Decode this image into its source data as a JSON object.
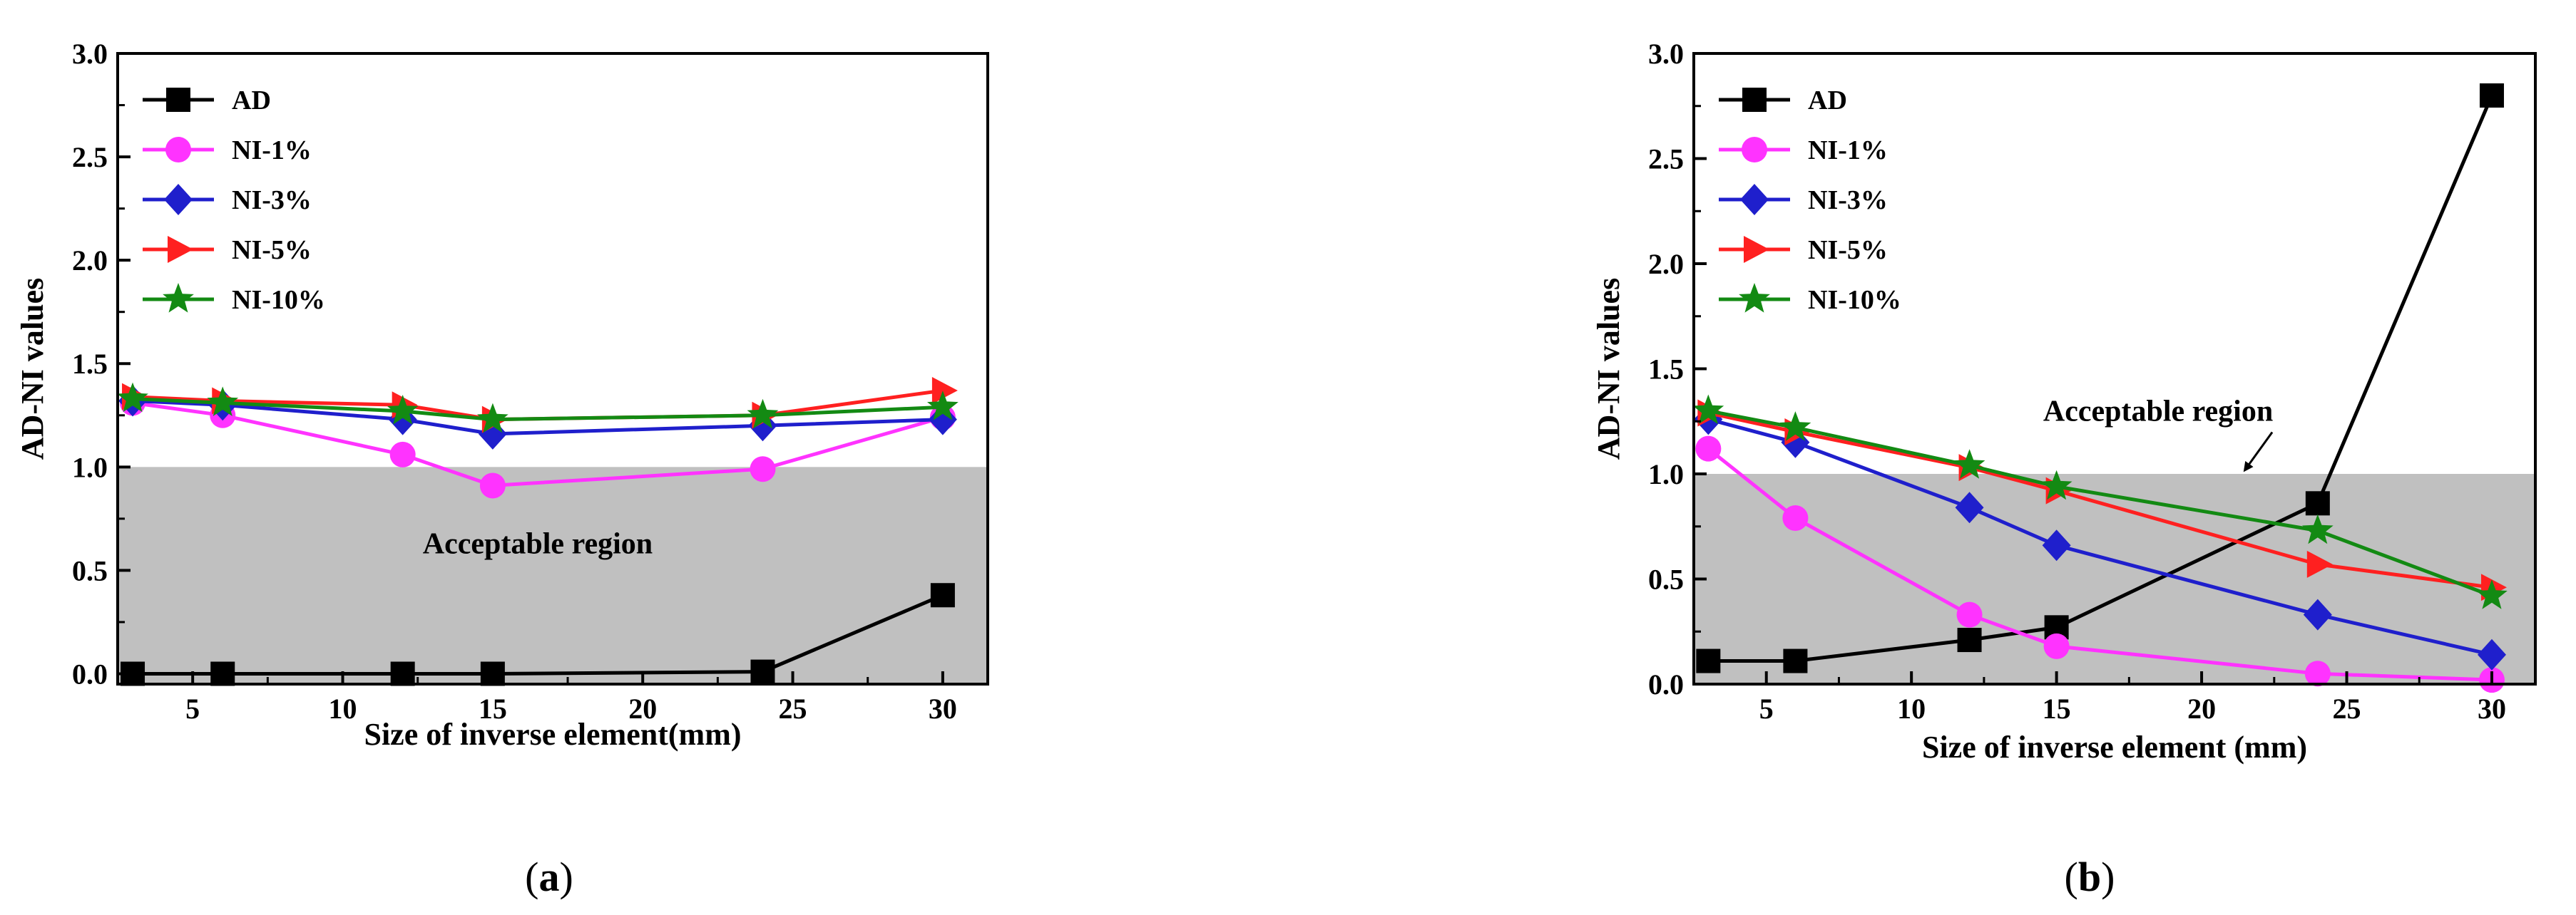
{
  "chart_data": [
    {
      "type": "line",
      "panel_label": "(a)",
      "panel_letter": "a",
      "xlabel": "Size of inverse element(mm)",
      "ylabel": "AD-NI values",
      "xlim": [
        2.5,
        31.5
      ],
      "ylim": [
        -0.05,
        3.0
      ],
      "xticks": [
        5,
        10,
        15,
        20,
        25,
        30
      ],
      "yticks": [
        0.0,
        0.5,
        1.0,
        1.5,
        2.0,
        2.5,
        3.0
      ],
      "tick_labels_y": [
        "0.0",
        "0.5",
        "1.0",
        "1.5",
        "2.0",
        "2.5",
        "3.0"
      ],
      "tick_labels_x": [
        "5",
        "10",
        "15",
        "20",
        "25",
        "30"
      ],
      "shaded_region": {
        "y_from": -0.05,
        "y_to": 1.0,
        "color": "#c0c0c0"
      },
      "annotation": {
        "text": "Acceptable region",
        "x": 16.5,
        "y": 0.63,
        "anchor": "middle",
        "arrow": false
      },
      "legend_position": "top-left",
      "x": [
        3,
        6,
        12,
        15,
        24,
        30
      ],
      "series": [
        {
          "name": "AD",
          "color": "#000000",
          "marker": "square",
          "values": [
            0.0,
            0.0,
            0.0,
            0.0,
            0.01,
            0.38
          ]
        },
        {
          "name": "NI-1%",
          "color": "#ff33ff",
          "marker": "circle",
          "values": [
            1.31,
            1.25,
            1.06,
            0.91,
            0.99,
            1.24
          ]
        },
        {
          "name": "NI-3%",
          "color": "#1f1fcc",
          "marker": "diamond",
          "values": [
            1.32,
            1.3,
            1.23,
            1.16,
            1.2,
            1.23
          ]
        },
        {
          "name": "NI-5%",
          "color": "#ff2020",
          "marker": "triangle-right",
          "values": [
            1.34,
            1.32,
            1.3,
            1.23,
            1.25,
            1.37
          ]
        },
        {
          "name": "NI-10%",
          "color": "#138a13",
          "marker": "star",
          "values": [
            1.33,
            1.31,
            1.27,
            1.23,
            1.25,
            1.29
          ]
        }
      ]
    },
    {
      "type": "line",
      "panel_label": "(b)",
      "panel_letter": "b",
      "xlabel": "Size of inverse element (mm)",
      "ylabel": "AD-NI values",
      "xlim": [
        2.5,
        31.5
      ],
      "ylim": [
        0.0,
        3.0
      ],
      "xticks": [
        5,
        10,
        15,
        20,
        25,
        30
      ],
      "yticks": [
        0.0,
        0.5,
        1.0,
        1.5,
        2.0,
        2.5,
        3.0
      ],
      "tick_labels_y": [
        "0.0",
        "0.5",
        "1.0",
        "1.5",
        "2.0",
        "2.5",
        "3.0"
      ],
      "tick_labels_x": [
        "5",
        "10",
        "15",
        "20",
        "25",
        "30"
      ],
      "shaded_region": {
        "y_from": 0.0,
        "y_to": 1.0,
        "color": "#c0c0c0"
      },
      "annotation": {
        "text": "Acceptable region",
        "x": 18.5,
        "y": 1.3,
        "anchor": "middle",
        "arrow": true,
        "arrow_to": [
          21.5,
          1.02
        ]
      },
      "legend_position": "top-left",
      "x": [
        3,
        6,
        12,
        15,
        24,
        30
      ],
      "series": [
        {
          "name": "AD",
          "color": "#000000",
          "marker": "square",
          "values": [
            0.11,
            0.11,
            0.21,
            0.27,
            0.86,
            2.8
          ]
        },
        {
          "name": "NI-1%",
          "color": "#ff33ff",
          "marker": "circle",
          "values": [
            1.12,
            0.79,
            0.33,
            0.18,
            0.05,
            0.02
          ]
        },
        {
          "name": "NI-3%",
          "color": "#1f1fcc",
          "marker": "diamond",
          "values": [
            1.26,
            1.15,
            0.84,
            0.66,
            0.33,
            0.14
          ]
        },
        {
          "name": "NI-5%",
          "color": "#ff2020",
          "marker": "triangle-right",
          "values": [
            1.29,
            1.2,
            1.03,
            0.92,
            0.57,
            0.46
          ]
        },
        {
          "name": "NI-10%",
          "color": "#138a13",
          "marker": "star",
          "values": [
            1.3,
            1.22,
            1.04,
            0.94,
            0.73,
            0.42
          ]
        }
      ]
    }
  ]
}
